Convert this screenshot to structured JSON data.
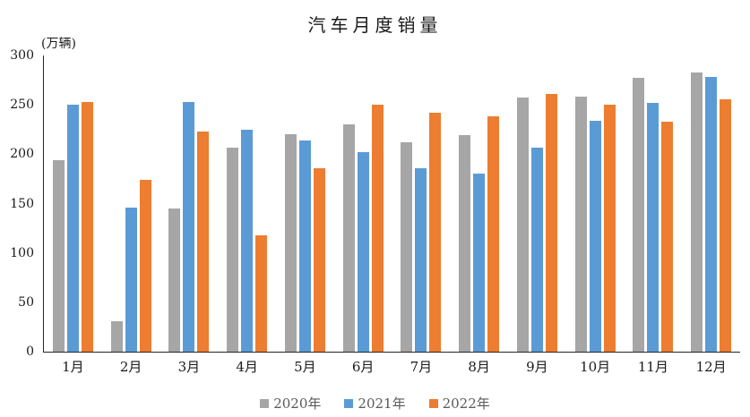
{
  "title": "汽车月度销量",
  "axis_unit_label": "(万辆)",
  "y_axis": {
    "ticks": [
      300,
      250,
      200,
      150,
      100,
      50,
      0
    ],
    "min": 0,
    "max": 300
  },
  "legend": {
    "items": [
      {
        "label": "2020年",
        "color": "#A6A6A6"
      },
      {
        "label": "2021年",
        "color": "#5B9BD5"
      },
      {
        "label": "2022年",
        "color": "#ED7D31"
      }
    ]
  },
  "colors": {
    "series_2020": "#A6A6A6",
    "series_2021": "#5B9BD5",
    "series_2022": "#ED7D31",
    "axis": "#262626",
    "text": "#1a1a1a",
    "legend_text": "#595959",
    "background": "#ffffff"
  },
  "chart_data": {
    "type": "bar",
    "title": "汽车月度销量",
    "unit_label": "(万辆)",
    "xlabel": "",
    "ylabel": "万辆",
    "categories": [
      "1月",
      "2月",
      "3月",
      "4月",
      "5月",
      "6月",
      "7月",
      "8月",
      "9月",
      "10月",
      "11月",
      "12月"
    ],
    "series": [
      {
        "name": "2020年",
        "color": "#A6A6A6",
        "values": [
          194,
          31,
          145,
          207,
          220,
          230,
          212,
          219,
          257,
          258,
          277,
          283
        ]
      },
      {
        "name": "2021年",
        "color": "#5B9BD5",
        "values": [
          250,
          146,
          253,
          225,
          214,
          202,
          186,
          180,
          207,
          234,
          252,
          278
        ]
      },
      {
        "name": "2022年",
        "color": "#ED7D31",
        "values": [
          253,
          174,
          223,
          118,
          186,
          250,
          242,
          238,
          261,
          250,
          233,
          256
        ]
      }
    ],
    "ylim": [
      0,
      300
    ],
    "ytick_step": 50,
    "grid": false,
    "legend_position": "bottom"
  }
}
